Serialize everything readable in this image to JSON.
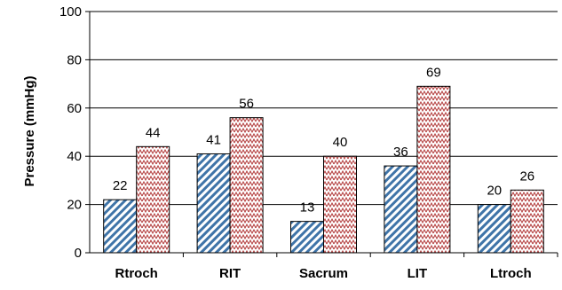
{
  "chart_data": {
    "type": "bar",
    "title": "",
    "xlabel": "",
    "ylabel": "Pressure (mmHg)",
    "ylim": [
      0,
      100
    ],
    "yticks": [
      0,
      20,
      40,
      60,
      80,
      100
    ],
    "grid": true,
    "legend": "none",
    "categories": [
      "Rtroch",
      "RIT",
      "Sacrum",
      "LIT",
      "Ltroch"
    ],
    "series": [
      {
        "values": [
          22,
          41,
          13,
          36,
          20
        ],
        "pattern": "diagonal-stripes",
        "color": "#4a7aa8"
      },
      {
        "values": [
          44,
          56,
          40,
          69,
          26
        ],
        "pattern": "zigzag-dots",
        "color": "#b03030"
      }
    ]
  }
}
